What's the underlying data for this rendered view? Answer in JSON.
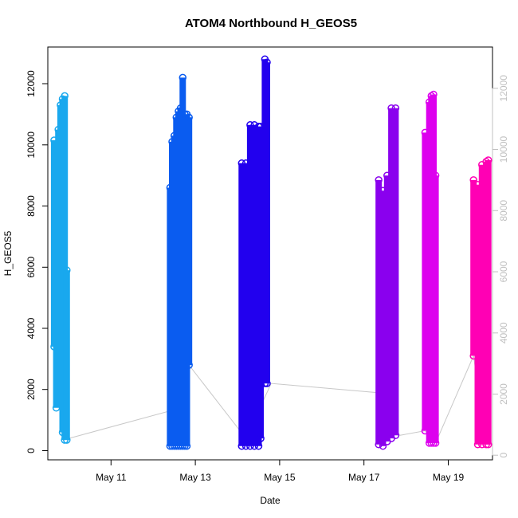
{
  "chart_data": {
    "type": "scatter",
    "title": "ATOM4 Northbound H_GEOS5",
    "xlabel": "Date",
    "ylabel": "H_GEOS5",
    "x_ticks": [
      "May 11",
      "May 13",
      "May 15",
      "May 17",
      "May 19"
    ],
    "x_tick_days": [
      11,
      13,
      15,
      17,
      19
    ],
    "xlim_days": [
      9.5,
      20.05
    ],
    "ylim": [
      -300,
      13200
    ],
    "y_ticks": [
      0,
      2000,
      4000,
      6000,
      8000,
      10000,
      12000
    ],
    "y_ticks_right": [
      0,
      2000,
      4000,
      6000,
      8000,
      10000,
      12000
    ],
    "ylim_right": [
      -150,
      13350
    ],
    "grid": false,
    "marker": "open circle",
    "connector_color": "#c8c8c8",
    "connector": [
      {
        "day": 10.0,
        "y": 400
      },
      {
        "day": 12.4,
        "y": 1300
      },
      {
        "day": 12.85,
        "y": 2800
      },
      {
        "day": 14.2,
        "y": 400
      },
      {
        "day": 14.8,
        "y": 2200
      },
      {
        "day": 17.3,
        "y": 1900
      },
      {
        "day": 17.85,
        "y": 500
      },
      {
        "day": 18.45,
        "y": 650
      },
      {
        "day": 18.7,
        "y": 250
      },
      {
        "day": 19.6,
        "y": 3100
      },
      {
        "day": 19.9,
        "y": 200
      }
    ],
    "series": [
      {
        "date_range": [
          "May 9",
          "May 10"
        ],
        "color": "#19a8ee",
        "segments": [
          {
            "day": 9.65,
            "ymin": 3400,
            "ymax": 10150
          },
          {
            "day": 9.7,
            "ymin": 1400,
            "ymax": 9800
          },
          {
            "day": 9.75,
            "ymin": 2800,
            "ymax": 10500
          },
          {
            "day": 9.8,
            "ymin": 2000,
            "ymax": 11300
          },
          {
            "day": 9.85,
            "ymin": 600,
            "ymax": 11500
          },
          {
            "day": 9.9,
            "ymin": 350,
            "ymax": 11600
          },
          {
            "day": 9.95,
            "ymin": 350,
            "ymax": 5900
          }
        ]
      },
      {
        "date_range": [
          "May 12",
          "May 13"
        ],
        "color": "#0a5cf0",
        "segments": [
          {
            "day": 12.4,
            "ymin": 150,
            "ymax": 8600
          },
          {
            "day": 12.45,
            "ymin": 150,
            "ymax": 10100
          },
          {
            "day": 12.5,
            "ymin": 150,
            "ymax": 10300
          },
          {
            "day": 12.55,
            "ymin": 150,
            "ymax": 10900
          },
          {
            "day": 12.6,
            "ymin": 150,
            "ymax": 11100
          },
          {
            "day": 12.65,
            "ymin": 150,
            "ymax": 11200
          },
          {
            "day": 12.7,
            "ymin": 150,
            "ymax": 12200
          },
          {
            "day": 12.75,
            "ymin": 150,
            "ymax": 11000
          },
          {
            "day": 12.8,
            "ymin": 150,
            "ymax": 11000
          },
          {
            "day": 12.85,
            "ymin": 2800,
            "ymax": 10900
          }
        ]
      },
      {
        "date_range": [
          "May 14",
          "May 15"
        ],
        "color": "#2200ee",
        "segments": [
          {
            "day": 14.1,
            "ymin": 150,
            "ymax": 9400
          },
          {
            "day": 14.2,
            "ymin": 150,
            "ymax": 9400
          },
          {
            "day": 14.3,
            "ymin": 150,
            "ymax": 10650
          },
          {
            "day": 14.4,
            "ymin": 150,
            "ymax": 10650
          },
          {
            "day": 14.5,
            "ymin": 150,
            "ymax": 10600
          },
          {
            "day": 14.55,
            "ymin": 400,
            "ymax": 10600
          },
          {
            "day": 14.65,
            "ymin": 2200,
            "ymax": 12800
          },
          {
            "day": 14.7,
            "ymin": 2200,
            "ymax": 12700
          }
        ]
      },
      {
        "date_range": [
          "May 17",
          "May 18"
        ],
        "color": "#8a00ee",
        "segments": [
          {
            "day": 17.35,
            "ymin": 200,
            "ymax": 8850
          },
          {
            "day": 17.45,
            "ymin": 150,
            "ymax": 8500
          },
          {
            "day": 17.55,
            "ymin": 300,
            "ymax": 9000
          },
          {
            "day": 17.65,
            "ymin": 400,
            "ymax": 11200
          },
          {
            "day": 17.75,
            "ymin": 500,
            "ymax": 11200
          }
        ]
      },
      {
        "date_range": [
          "May 18",
          "May 19"
        ],
        "color": "#dd00ee",
        "segments": [
          {
            "day": 18.45,
            "ymin": 650,
            "ymax": 10400
          },
          {
            "day": 18.55,
            "ymin": 250,
            "ymax": 11400
          },
          {
            "day": 18.6,
            "ymin": 250,
            "ymax": 11600
          },
          {
            "day": 18.65,
            "ymin": 250,
            "ymax": 11650
          },
          {
            "day": 18.7,
            "ymin": 250,
            "ymax": 9000
          }
        ]
      },
      {
        "date_range": [
          "May 19",
          "May 20"
        ],
        "color": "#ff00b4",
        "segments": [
          {
            "day": 19.6,
            "ymin": 3100,
            "ymax": 8850
          },
          {
            "day": 19.7,
            "ymin": 200,
            "ymax": 8700
          },
          {
            "day": 19.8,
            "ymin": 200,
            "ymax": 9350
          },
          {
            "day": 19.9,
            "ymin": 200,
            "ymax": 9450
          },
          {
            "day": 19.95,
            "ymin": 200,
            "ymax": 9500
          }
        ]
      }
    ]
  }
}
